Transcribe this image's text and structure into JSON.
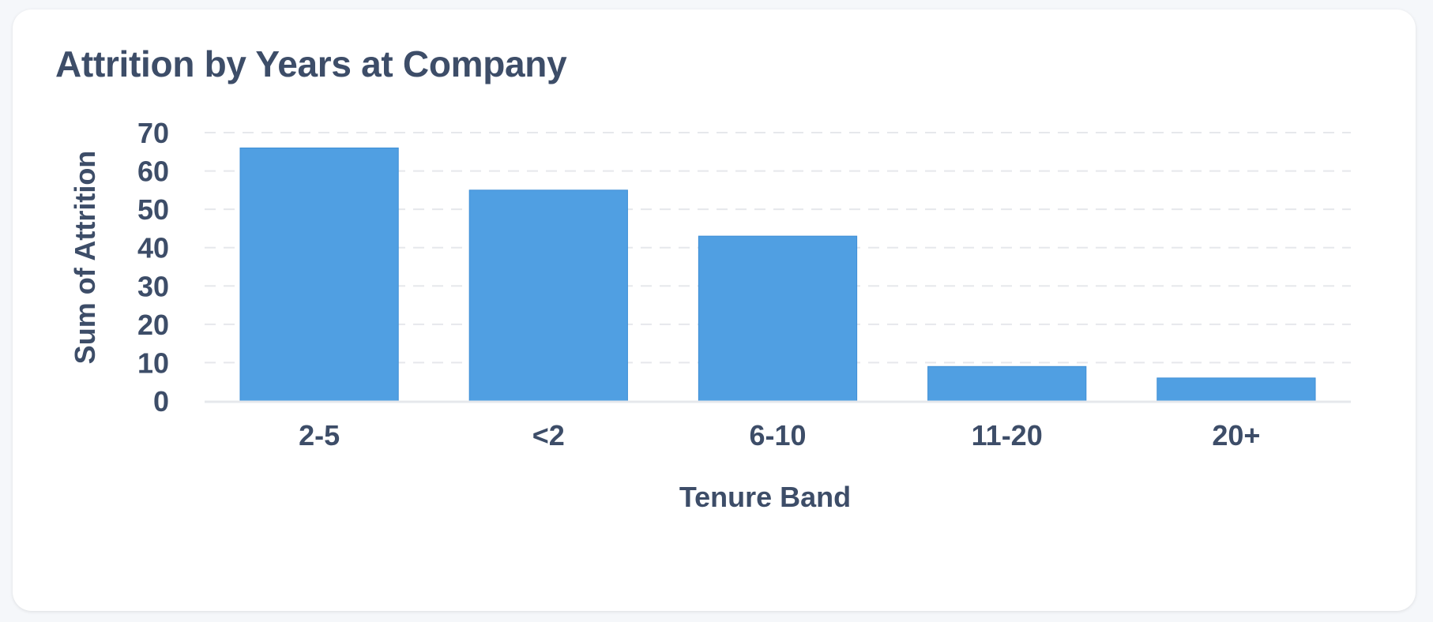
{
  "card": {
    "title": "Attrition by Years at Company"
  },
  "chart_data": {
    "type": "bar",
    "title": "Attrition by Years at Company",
    "categories": [
      "2-5",
      "<2",
      "6-10",
      "11-20",
      "20+"
    ],
    "values": [
      66,
      55,
      43,
      9,
      6
    ],
    "xlabel": "Tenure Band",
    "ylabel": "Sum of Attrition",
    "ylim": [
      0,
      70
    ],
    "yticks": [
      0,
      10,
      20,
      30,
      40,
      50,
      60,
      70
    ],
    "grid": true,
    "legend": "none",
    "bar_color": "#509fe2",
    "text_color": "#3d4d68",
    "grid_color": "#e6e8ec"
  }
}
